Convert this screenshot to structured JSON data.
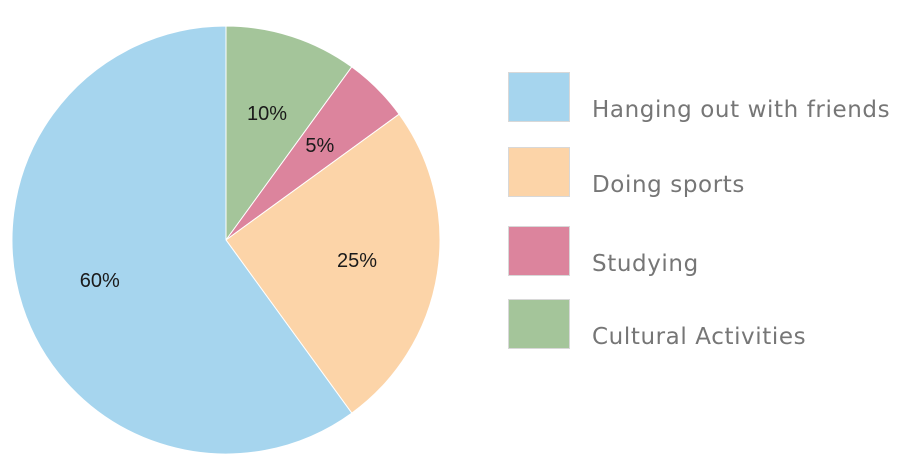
{
  "chart_data": {
    "type": "pie",
    "title": "",
    "slices": [
      {
        "label": "Cultural Activities",
        "value": 10,
        "display": "10%",
        "color": "#a4c59a"
      },
      {
        "label": "Studying",
        "value": 5,
        "display": "5%",
        "color": "#dc849d"
      },
      {
        "label": "Doing sports",
        "value": 25,
        "display": "25%",
        "color": "#fcd4a8"
      },
      {
        "label": "Hanging out with friends",
        "value": 60,
        "display": "60%",
        "color": "#a6d5ee"
      }
    ],
    "start_angle_deg": 0,
    "direction": "clockwise",
    "legend": {
      "position": "right",
      "entries": [
        {
          "label": "Hanging out with friends",
          "color": "#a6d5ee"
        },
        {
          "label": "Doing sports",
          "color": "#fcd4a8"
        },
        {
          "label": "Studying",
          "color": "#dc849d"
        },
        {
          "label": "Cultural Activities",
          "color": "#a4c59a"
        }
      ]
    }
  }
}
